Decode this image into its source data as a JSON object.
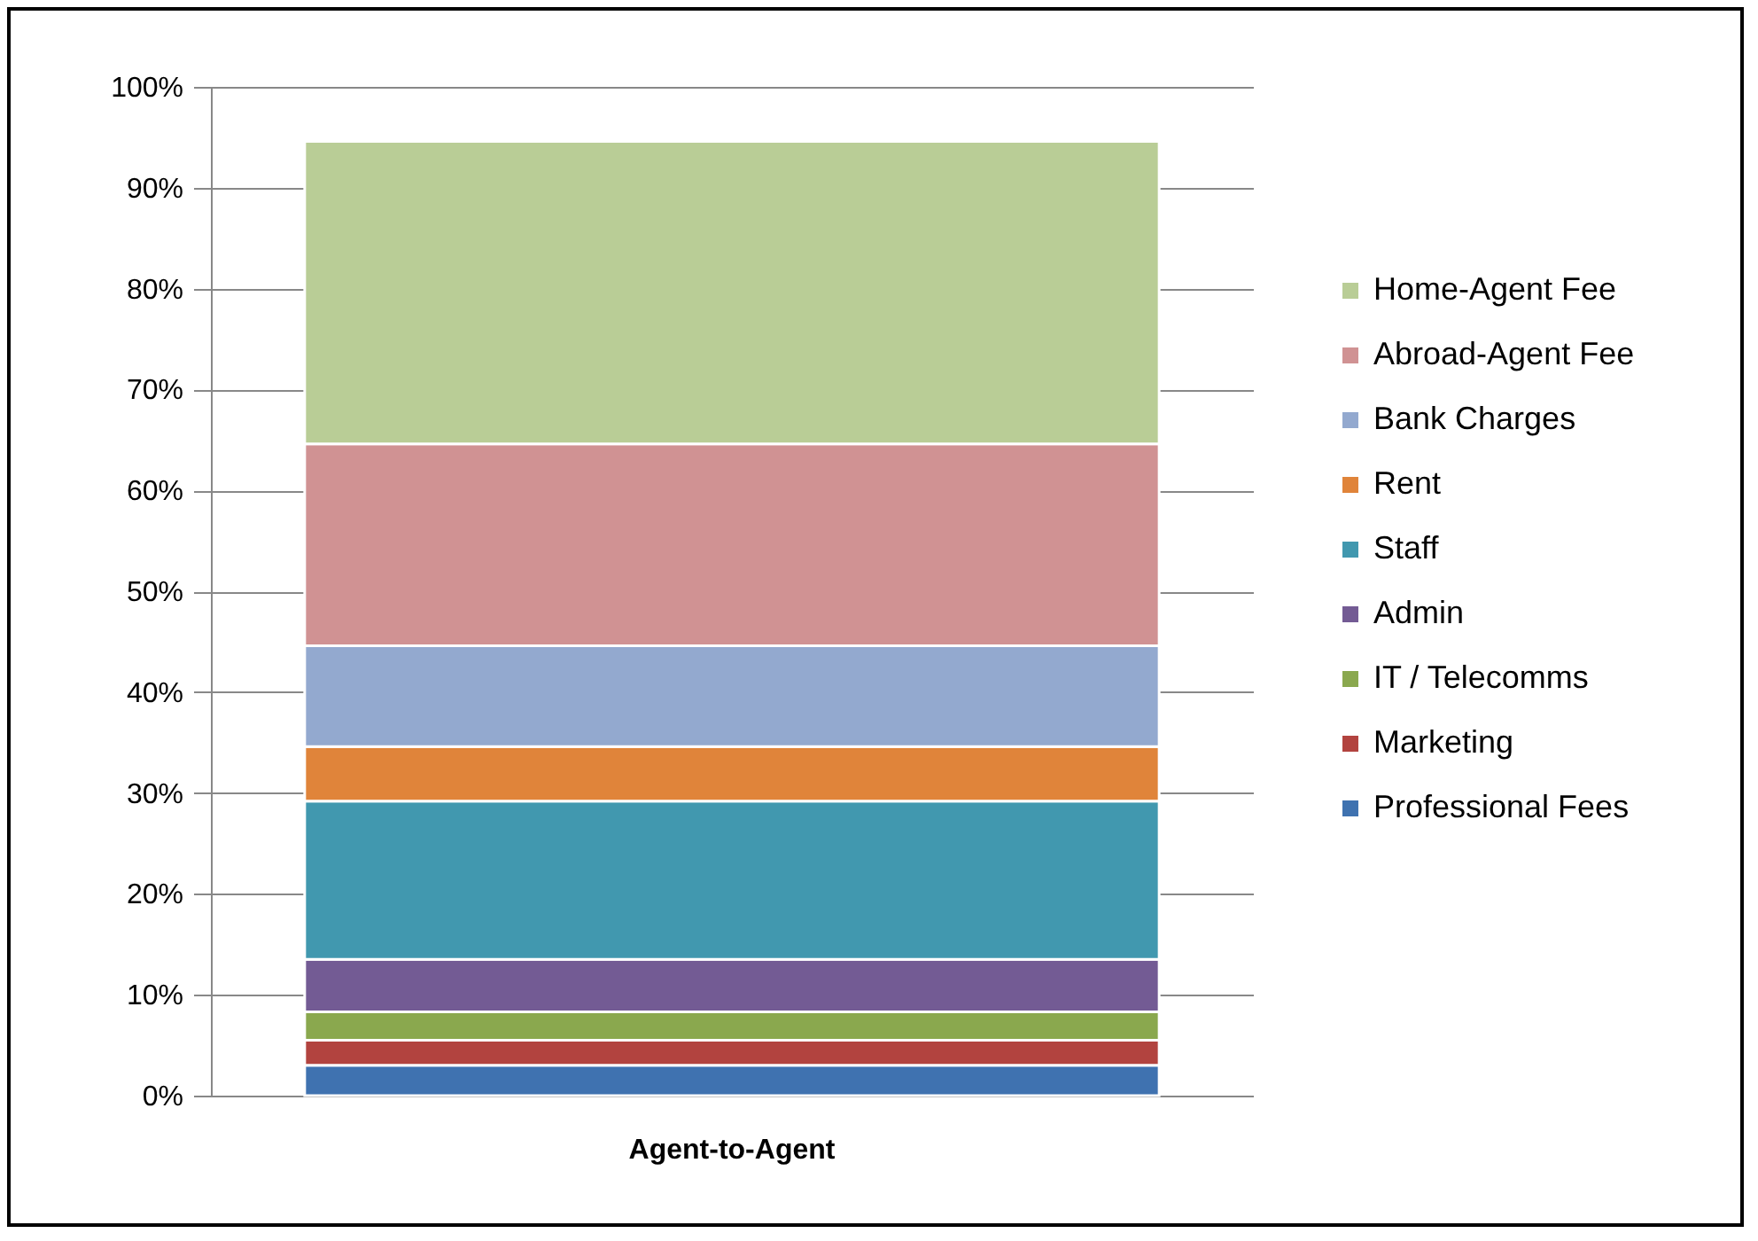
{
  "chart_data": {
    "type": "bar",
    "stacked": true,
    "categories": [
      "Agent-to-Agent"
    ],
    "series": [
      {
        "name": "Professional Fees",
        "color": "#3f72b0",
        "values": [
          3
        ]
      },
      {
        "name": "Marketing",
        "color": "#b2433f",
        "values": [
          2.5
        ]
      },
      {
        "name": "IT / Telecomms",
        "color": "#8aa84e",
        "values": [
          2.8
        ]
      },
      {
        "name": "Admin",
        "color": "#735b94",
        "values": [
          5.2
        ]
      },
      {
        "name": "Staff",
        "color": "#4198af",
        "values": [
          15.7
        ]
      },
      {
        "name": "Rent",
        "color": "#e0843a",
        "values": [
          5.4
        ]
      },
      {
        "name": "Bank Charges",
        "color": "#93a9cf",
        "values": [
          10
        ]
      },
      {
        "name": "Abroad-Agent Fee",
        "color": "#d09293",
        "values": [
          20
        ]
      },
      {
        "name": "Home-Agent Fee",
        "color": "#b9cd96",
        "values": [
          30
        ]
      }
    ],
    "ylim": [
      0,
      100
    ],
    "yticks": [
      {
        "value": 0,
        "label": "0%"
      },
      {
        "value": 10,
        "label": "10%"
      },
      {
        "value": 20,
        "label": "20%"
      },
      {
        "value": 30,
        "label": "30%"
      },
      {
        "value": 40,
        "label": "40%"
      },
      {
        "value": 50,
        "label": "50%"
      },
      {
        "value": 60,
        "label": "60%"
      },
      {
        "value": 70,
        "label": "70%"
      },
      {
        "value": 80,
        "label": "80%"
      },
      {
        "value": 90,
        "label": "90%"
      },
      {
        "value": 100,
        "label": "100%"
      }
    ],
    "grid": "y",
    "legend": "right"
  }
}
